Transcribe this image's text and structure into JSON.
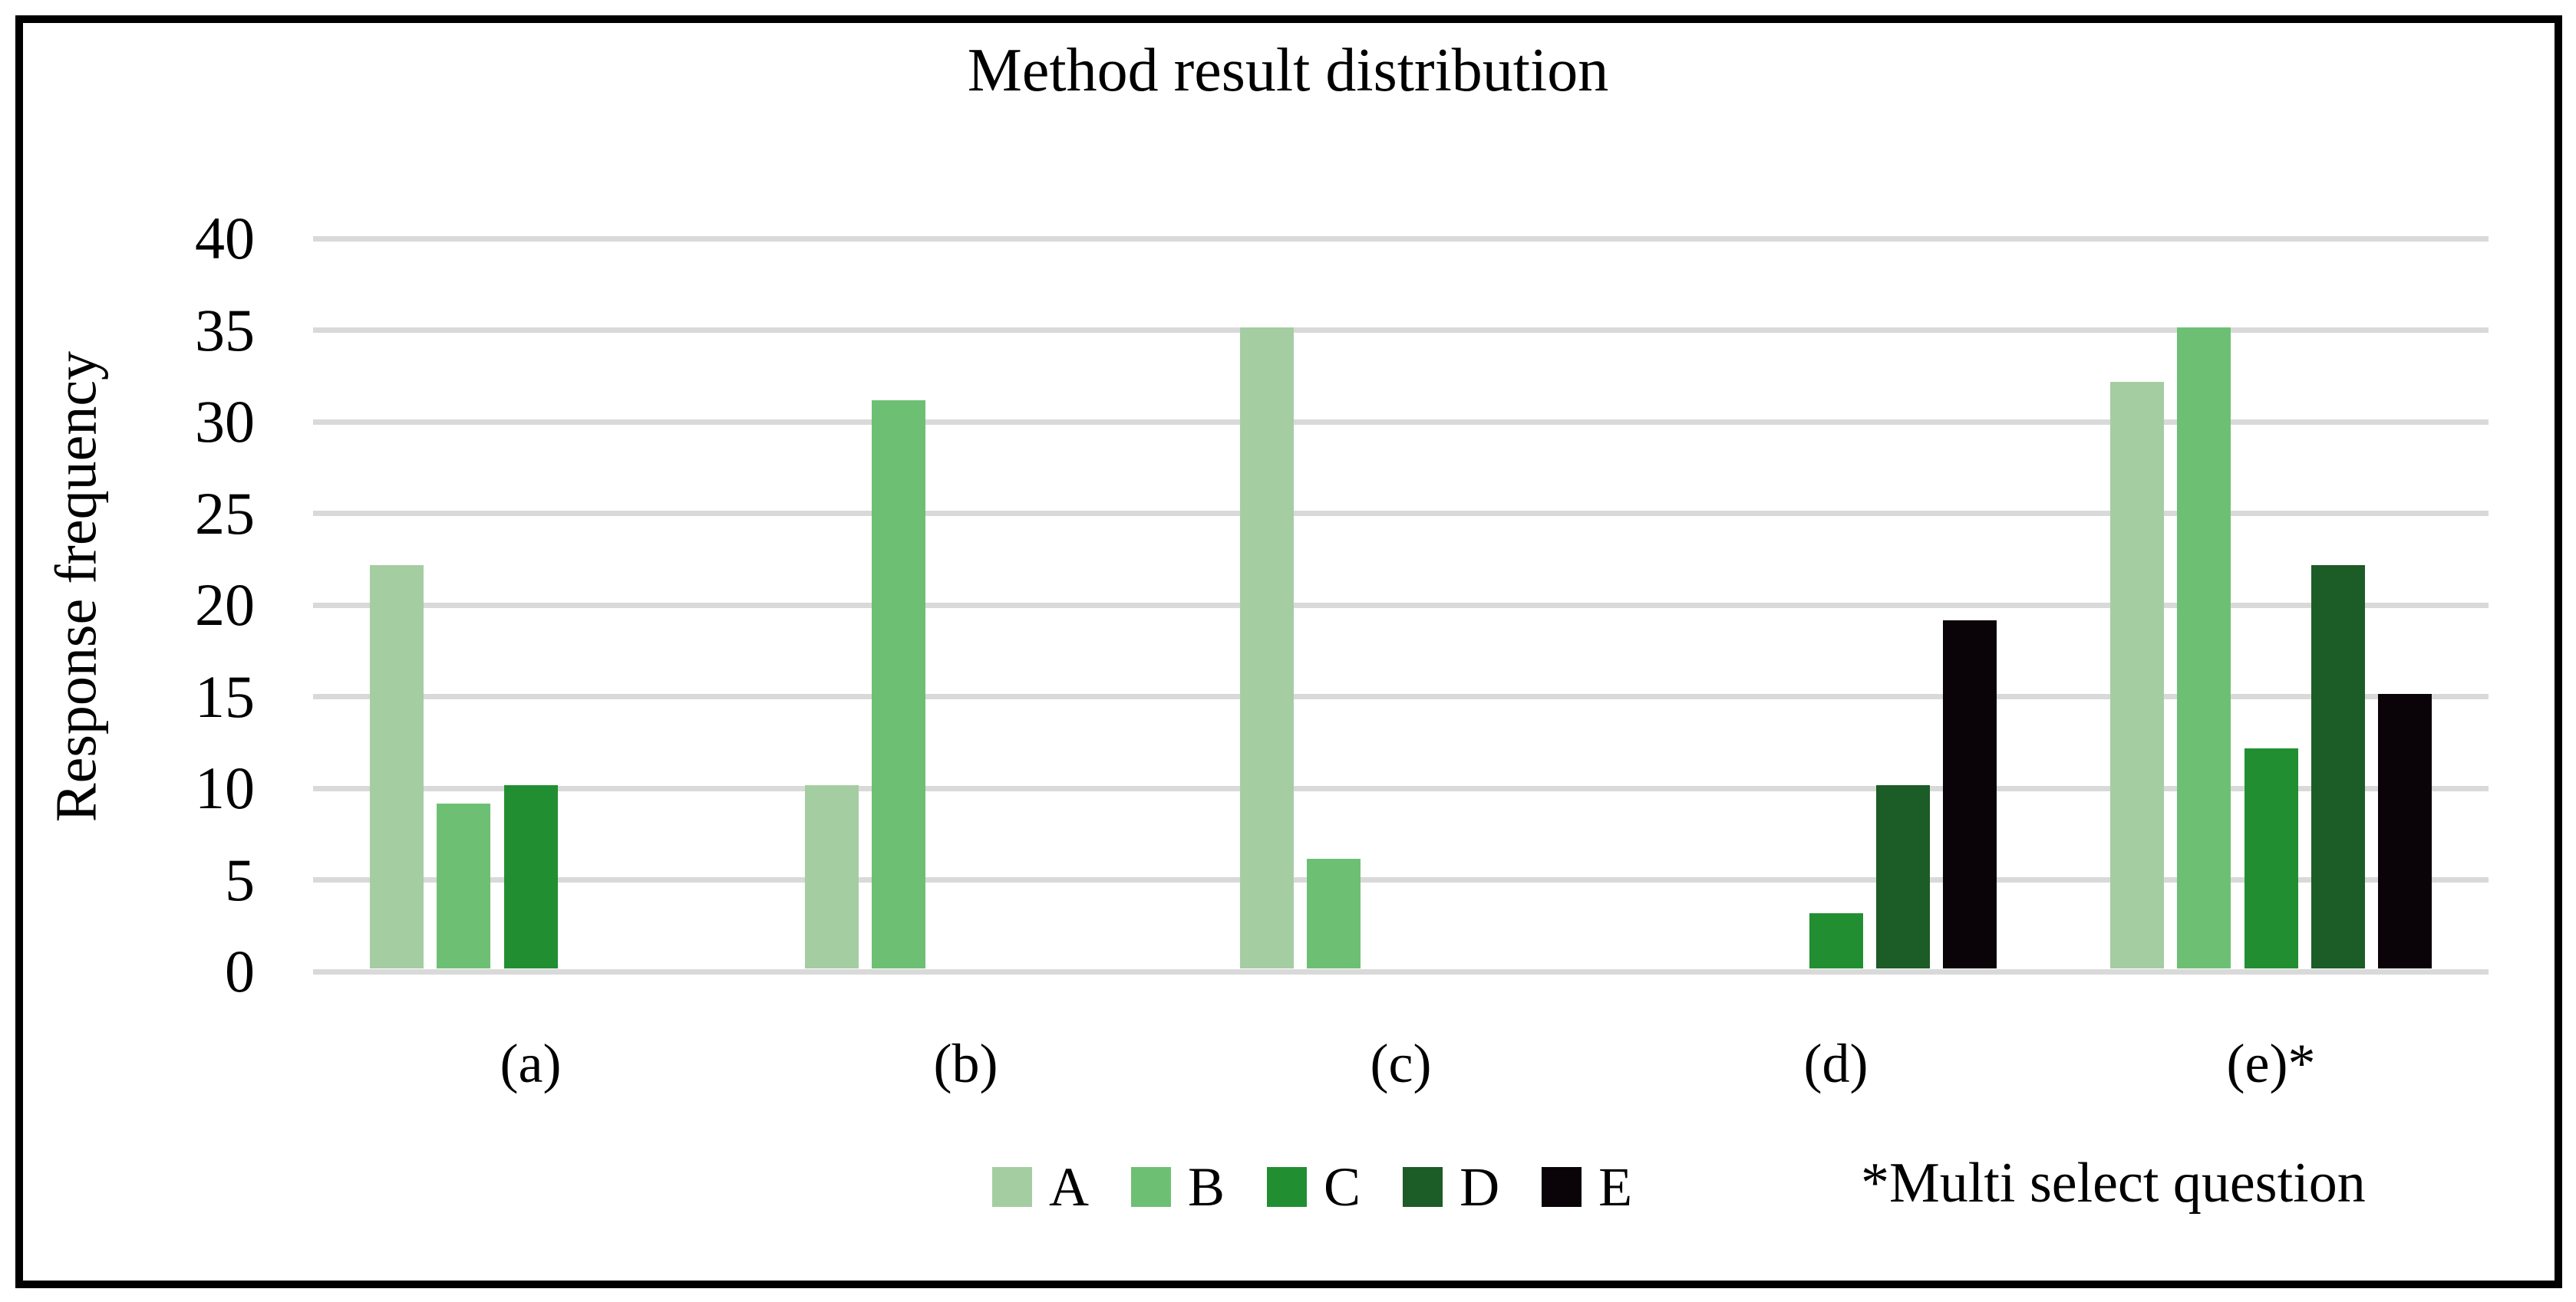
{
  "chart_data": {
    "type": "bar",
    "title": "Method result distribution",
    "ylabel": "Response frequency",
    "xlabel": "",
    "categories": [
      "(a)",
      "(b)",
      "(c)",
      "(d)",
      "(e)*"
    ],
    "series": [
      {
        "name": "A",
        "color": "#a5cda2",
        "values": [
          22,
          10,
          35,
          0,
          32
        ]
      },
      {
        "name": "B",
        "color": "#6dc073",
        "values": [
          9,
          31,
          6,
          0,
          35
        ]
      },
      {
        "name": "C",
        "color": "#218f31",
        "values": [
          10,
          0,
          0,
          3,
          12
        ]
      },
      {
        "name": "D",
        "color": "#1c5c26",
        "values": [
          0,
          0,
          0,
          10,
          22
        ]
      },
      {
        "name": "E",
        "color": "#0a0308",
        "values": [
          0,
          0,
          0,
          19,
          15
        ]
      }
    ],
    "ylim": [
      0,
      40
    ],
    "ytick_step": 5,
    "grid": true,
    "gridline_color": "#d9d9d9",
    "legend_position": "bottom",
    "footnote": "*Multi select question"
  },
  "layout_colors": {
    "frame_border": "#000000",
    "background": "#ffffff",
    "text": "#000000"
  }
}
